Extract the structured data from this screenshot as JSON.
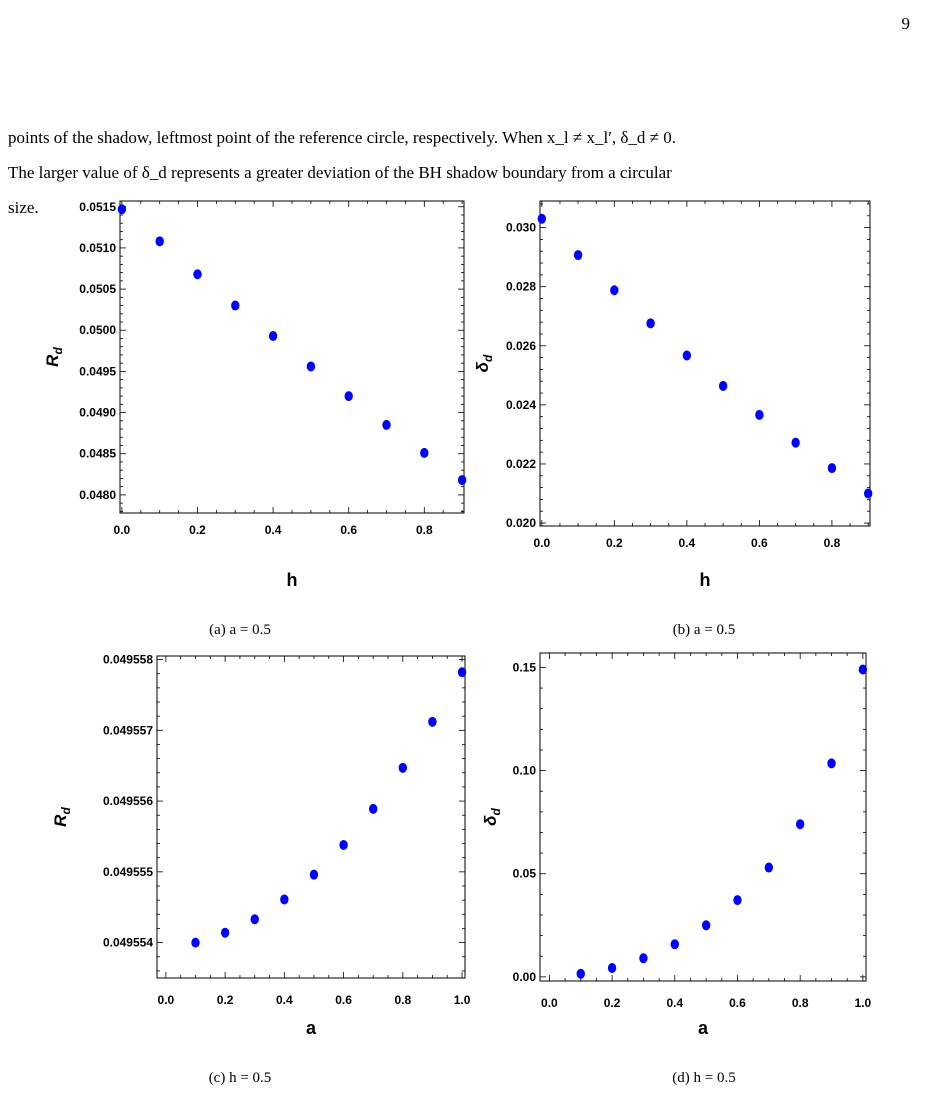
{
  "page": {
    "number": "9",
    "paragraph_lines": [
      "points of the shadow, leftmost point of the reference circle, respectively. When x_l ≠ x_l′, δ_d ≠ 0.",
      "The larger value of δ_d represents a greater deviation of the BH shadow boundary from a circular",
      "size."
    ]
  },
  "captions": {
    "a": "(a) a = 0.5",
    "b": "(b) a = 0.5",
    "c": "(c) h = 0.5",
    "d": "(d) h = 0.5"
  },
  "colors": {
    "marker": "#0000ff",
    "axes": "#000000"
  },
  "chart_data": [
    {
      "id": "a",
      "type": "scatter",
      "xlabel": "h",
      "ylabel_main": "R",
      "ylabel_sub": "d",
      "xlim": [
        -0.005,
        0.905
      ],
      "ylim": [
        0.04778,
        0.05157
      ],
      "xticks": [
        0.0,
        0.2,
        0.4,
        0.6,
        0.8
      ],
      "xtick_labels": [
        "0.0",
        "0.2",
        "0.4",
        "0.6",
        "0.8"
      ],
      "yticks": [
        0.048,
        0.0485,
        0.049,
        0.0495,
        0.05,
        0.0505,
        0.051,
        0.0515
      ],
      "ytick_labels": [
        "0.0480",
        "0.0485",
        "0.0490",
        "0.0495",
        "0.0500",
        "0.0505",
        "0.0510",
        "0.0515"
      ],
      "x": [
        0.0,
        0.1,
        0.2,
        0.3,
        0.4,
        0.5,
        0.6,
        0.7,
        0.8,
        0.9
      ],
      "y": [
        0.05147,
        0.05108,
        0.05068,
        0.0503,
        0.04993,
        0.04956,
        0.0492,
        0.04885,
        0.04851,
        0.04818
      ]
    },
    {
      "id": "b",
      "type": "scatter",
      "xlabel": "h",
      "ylabel_main": "δ",
      "ylabel_sub": "d",
      "xlim": [
        -0.005,
        0.905
      ],
      "ylim": [
        0.0199,
        0.0309
      ],
      "xticks": [
        0.0,
        0.2,
        0.4,
        0.6,
        0.8
      ],
      "xtick_labels": [
        "0.0",
        "0.2",
        "0.4",
        "0.6",
        "0.8"
      ],
      "yticks": [
        0.02,
        0.022,
        0.024,
        0.026,
        0.028,
        0.03
      ],
      "ytick_labels": [
        "0.020",
        "0.022",
        "0.024",
        "0.026",
        "0.028",
        "0.030"
      ],
      "x": [
        0.0,
        0.1,
        0.2,
        0.3,
        0.4,
        0.5,
        0.6,
        0.7,
        0.8,
        0.9
      ],
      "y": [
        0.0303,
        0.02907,
        0.02788,
        0.02676,
        0.02567,
        0.02464,
        0.02366,
        0.02272,
        0.02186,
        0.021
      ]
    },
    {
      "id": "c",
      "type": "scatter",
      "xlabel": "a",
      "ylabel_main": "R",
      "ylabel_sub": "d",
      "xlim": [
        -0.03,
        1.01
      ],
      "ylim": [
        0.0495535,
        0.04955805
      ],
      "xticks": [
        0.0,
        0.2,
        0.4,
        0.6,
        0.8,
        1.0
      ],
      "xtick_labels": [
        "0.0",
        "0.2",
        "0.4",
        "0.6",
        "0.8",
        "1.0"
      ],
      "yticks": [
        0.049554,
        0.049555,
        0.049556,
        0.049557,
        0.049558
      ],
      "ytick_labels": [
        "0.049554",
        "0.049555",
        "0.049556",
        "0.049557",
        "0.049558"
      ],
      "x": [
        0.1,
        0.2,
        0.3,
        0.4,
        0.5,
        0.6,
        0.7,
        0.8,
        0.9,
        1.0
      ],
      "y": [
        0.049554,
        0.04955414,
        0.04955433,
        0.04955461,
        0.04955496,
        0.04955538,
        0.04955589,
        0.04955647,
        0.04955712,
        0.04955782
      ]
    },
    {
      "id": "d",
      "type": "scatter",
      "xlabel": "a",
      "ylabel_main": "δ",
      "ylabel_sub": "d",
      "xlim": [
        -0.03,
        1.01
      ],
      "ylim": [
        -0.002,
        0.157
      ],
      "xticks": [
        0.0,
        0.2,
        0.4,
        0.6,
        0.8,
        1.0
      ],
      "xtick_labels": [
        "0.0",
        "0.2",
        "0.4",
        "0.6",
        "0.8",
        "1.0"
      ],
      "yticks": [
        0.0,
        0.05,
        0.1,
        0.15
      ],
      "ytick_labels": [
        "0.00",
        "0.05",
        "0.10",
        "0.15"
      ],
      "x": [
        0.1,
        0.2,
        0.3,
        0.4,
        0.5,
        0.6,
        0.7,
        0.8,
        0.9,
        1.0
      ],
      "y": [
        0.0015,
        0.0043,
        0.009,
        0.0158,
        0.025,
        0.0372,
        0.053,
        0.074,
        0.1035,
        0.149
      ]
    }
  ]
}
